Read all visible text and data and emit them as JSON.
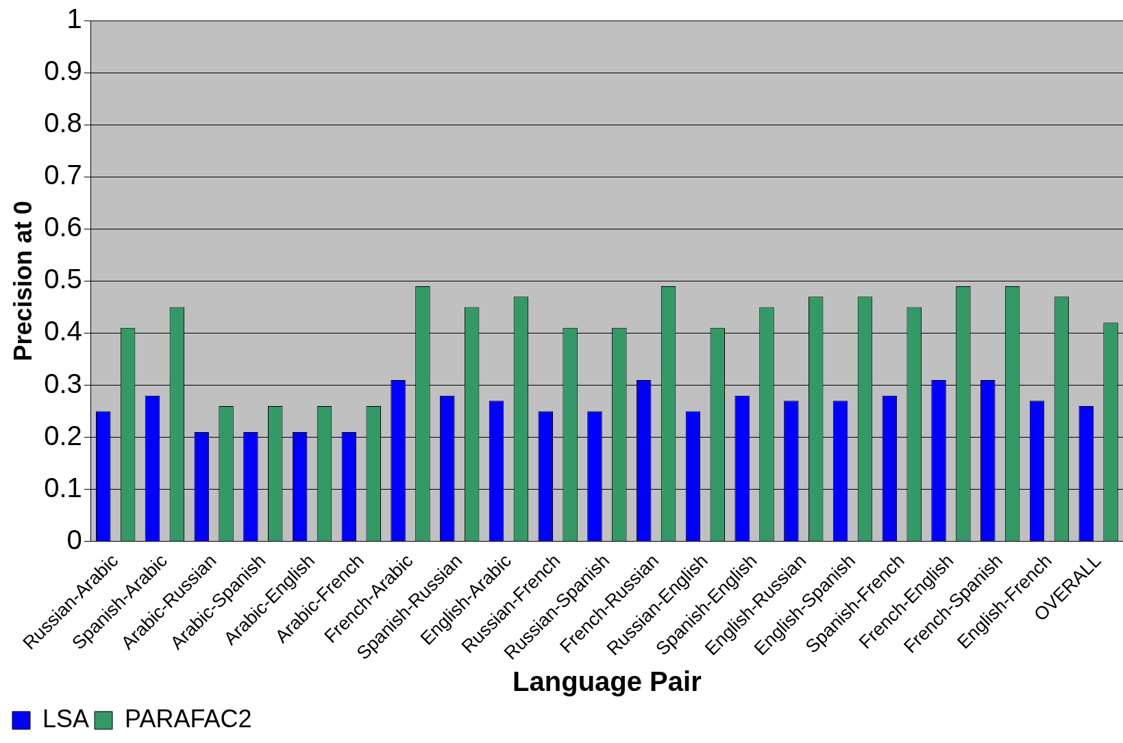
{
  "chart_data": {
    "type": "bar",
    "xlabel": "Language Pair",
    "ylabel": "Precision at 0",
    "categories": [
      "Russian-Arabic",
      "Spanish-Arabic",
      "Arabic-Russian",
      "Arabic-Spanish",
      "Arabic-English",
      "Arabic-French",
      "French-Arabic",
      "Spanish-Russian",
      "English-Arabic",
      "Russian-French",
      "Russian-Spanish",
      "French-Russian",
      "Russian-English",
      "Spanish-English",
      "English-Russian",
      "English-Spanish",
      "Spanish-French",
      "French-English",
      "French-Spanish",
      "English-French",
      "OVERALL"
    ],
    "series": [
      {
        "name": "LSA",
        "color": "#0000ff",
        "values": [
          0.25,
          0.28,
          0.21,
          0.21,
          0.21,
          0.21,
          0.31,
          0.28,
          0.27,
          0.25,
          0.25,
          0.31,
          0.25,
          0.28,
          0.27,
          0.27,
          0.28,
          0.31,
          0.31,
          0.27,
          0.26
        ]
      },
      {
        "name": "PARAFAC2",
        "color": "#339966",
        "values": [
          0.41,
          0.45,
          0.26,
          0.26,
          0.26,
          0.26,
          0.49,
          0.45,
          0.47,
          0.41,
          0.41,
          0.49,
          0.41,
          0.45,
          0.47,
          0.47,
          0.45,
          0.49,
          0.49,
          0.47,
          0.42
        ]
      }
    ],
    "ylim": [
      0,
      1
    ],
    "yticks": [
      0,
      0.1,
      0.2,
      0.3,
      0.4,
      0.5,
      0.6,
      0.7,
      0.8,
      0.9,
      1
    ],
    "grid": "y",
    "legend": "bottom left"
  }
}
